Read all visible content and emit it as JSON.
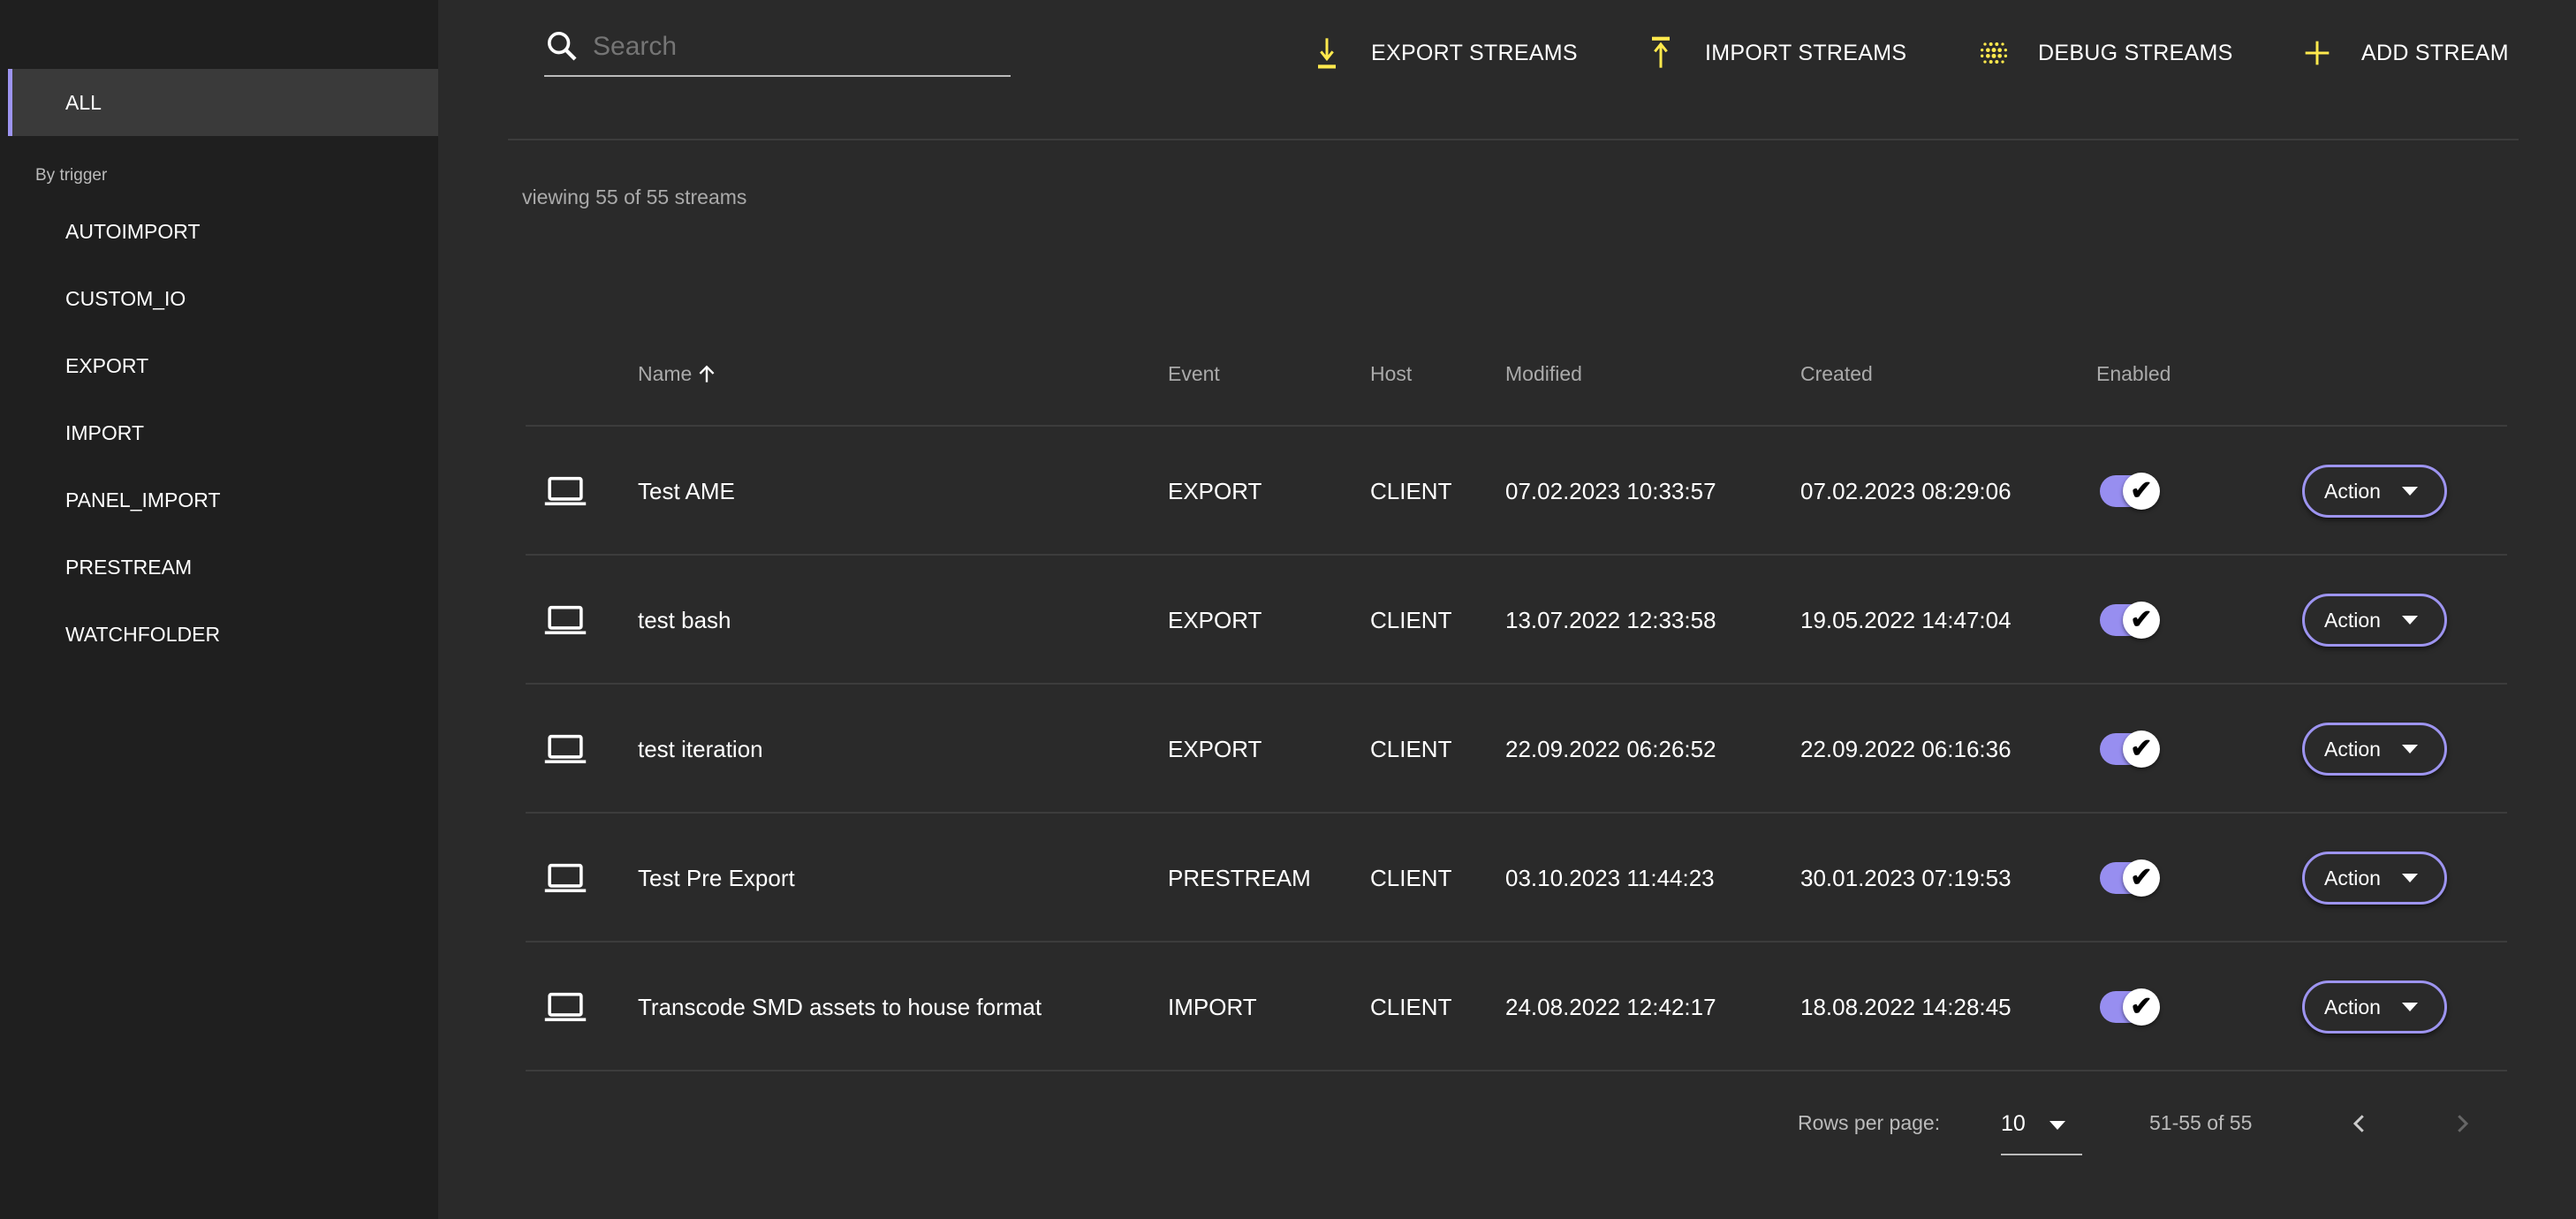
{
  "sidebar": {
    "all": "ALL",
    "group_label": "By trigger",
    "items": [
      "AUTOIMPORT",
      "CUSTOM_IO",
      "EXPORT",
      "IMPORT",
      "PANEL_IMPORT",
      "PRESTREAM",
      "WATCHFOLDER"
    ]
  },
  "toolbar": {
    "search_placeholder": "Search",
    "export": "EXPORT STREAMS",
    "import": "IMPORT STREAMS",
    "debug": "DEBUG STREAMS",
    "add": "ADD STREAM",
    "accent": "#ffe94d"
  },
  "summary": "viewing 55 of 55 streams",
  "table": {
    "headers": {
      "name": "Name",
      "event": "Event",
      "host": "Host",
      "modified": "Modified",
      "created": "Created",
      "enabled": "Enabled"
    },
    "sort": {
      "column": "Name",
      "direction": "ascending"
    },
    "rows": [
      {
        "name": "Test AME",
        "event": "EXPORT",
        "host": "CLIENT",
        "modified": "07.02.2023 10:33:57",
        "created": "07.02.2023 08:29:06",
        "enabled": true,
        "action": "Action"
      },
      {
        "name": "test bash",
        "event": "EXPORT",
        "host": "CLIENT",
        "modified": "13.07.2022 12:33:58",
        "created": "19.05.2022 14:47:04",
        "enabled": true,
        "action": "Action"
      },
      {
        "name": "test iteration",
        "event": "EXPORT",
        "host": "CLIENT",
        "modified": "22.09.2022 06:26:52",
        "created": "22.09.2022 06:16:36",
        "enabled": true,
        "action": "Action"
      },
      {
        "name": "Test Pre Export",
        "event": "PRESTREAM",
        "host": "CLIENT",
        "modified": "03.10.2023 11:44:23",
        "created": "30.01.2023 07:19:53",
        "enabled": true,
        "action": "Action"
      },
      {
        "name": "Transcode SMD assets to house format",
        "event": "IMPORT",
        "host": "CLIENT",
        "modified": "24.08.2022 12:42:17",
        "created": "18.08.2022 14:28:45",
        "enabled": true,
        "action": "Action"
      }
    ]
  },
  "pagination": {
    "rows_per_page_label": "Rows per page:",
    "rows_per_page": "10",
    "range": "51-55 of 55"
  },
  "colors": {
    "accent": "#9d94f0",
    "sidebar_bg": "#1f1f1f",
    "main_bg": "#2a2a2a"
  }
}
